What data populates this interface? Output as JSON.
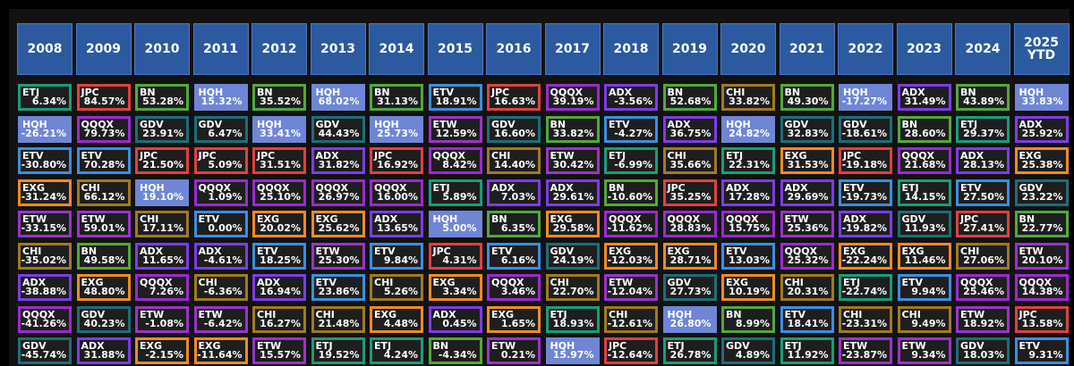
{
  "colors": {
    "ETJ": "#1a9c7a",
    "JPC": "#e04040",
    "BN": "#52a83c",
    "HQH": "#6f86d6",
    "ETV": "#3b8ee0",
    "QQQX": "#9a2ad0",
    "ADX": "#7d3ce8",
    "CHI": "#a07a20",
    "HQHborder": "#6f86d6",
    "GDV": "#1f6d78",
    "EXG": "#f08a24",
    "ETW": "#9a34c8"
  },
  "chart_data": {
    "type": "table",
    "columns": [
      "2008",
      "2009",
      "2010",
      "2011",
      "2012",
      "2013",
      "2014",
      "2015",
      "2016",
      "2017",
      "2018",
      "2019",
      "2020",
      "2021",
      "2022",
      "2023",
      "2024",
      "2025\nYTD"
    ],
    "rows": [
      [
        [
          "ETJ",
          "6.34%"
        ],
        [
          "JPC",
          "84.57%"
        ],
        [
          "BN",
          "53.28%"
        ],
        [
          "HQH",
          "15.32%"
        ],
        [
          "BN",
          "35.52%"
        ],
        [
          "HQH",
          "68.02%"
        ],
        [
          "BN",
          "31.13%"
        ],
        [
          "ETV",
          "18.91%"
        ],
        [
          "JPC",
          "16.63%"
        ],
        [
          "QQQX",
          "39.19%"
        ],
        [
          "ADX",
          "-3.56%"
        ],
        [
          "BN",
          "52.68%"
        ],
        [
          "CHI",
          "33.82%"
        ],
        [
          "BN",
          "49.30%"
        ],
        [
          "HQH",
          "-17.27%"
        ],
        [
          "ADX",
          "31.49%"
        ],
        [
          "BN",
          "43.89%"
        ],
        [
          "HQH",
          "33.83%"
        ]
      ],
      [
        [
          "HQH",
          "-26.21%"
        ],
        [
          "QQQX",
          "79.73%"
        ],
        [
          "GDV",
          "23.91%"
        ],
        [
          "GDV",
          "6.47%"
        ],
        [
          "HQH",
          "33.41%"
        ],
        [
          "GDV",
          "44.43%"
        ],
        [
          "HQH",
          "25.73%"
        ],
        [
          "ETW",
          "12.59%"
        ],
        [
          "GDV",
          "16.60%"
        ],
        [
          "BN",
          "33.82%"
        ],
        [
          "ETV",
          "-4.27%"
        ],
        [
          "ADX",
          "36.75%"
        ],
        [
          "HQH",
          "24.82%"
        ],
        [
          "GDV",
          "32.83%"
        ],
        [
          "GDV",
          "-18.61%"
        ],
        [
          "BN",
          "28.60%"
        ],
        [
          "ETJ",
          "29.37%"
        ],
        [
          "ADX",
          "25.92%"
        ]
      ],
      [
        [
          "ETV",
          "-30.80%"
        ],
        [
          "ETV",
          "70.28%"
        ],
        [
          "JPC",
          "21.50%"
        ],
        [
          "JPC",
          "5.09%"
        ],
        [
          "JPC",
          "31.51%"
        ],
        [
          "ADX",
          "31.82%"
        ],
        [
          "JPC",
          "16.92%"
        ],
        [
          "QQQX",
          "8.42%"
        ],
        [
          "CHI",
          "14.40%"
        ],
        [
          "ETW",
          "30.42%"
        ],
        [
          "ETJ",
          "-6.99%"
        ],
        [
          "CHI",
          "35.66%"
        ],
        [
          "ETJ",
          "22.31%"
        ],
        [
          "EXG",
          "31.53%"
        ],
        [
          "JPC",
          "-19.18%"
        ],
        [
          "QQQX",
          "21.68%"
        ],
        [
          "ADX",
          "28.13%"
        ],
        [
          "EXG",
          "25.38%"
        ]
      ],
      [
        [
          "EXG",
          "-31.24%"
        ],
        [
          "CHI",
          "66.12%"
        ],
        [
          "HQH",
          "19.10%"
        ],
        [
          "QQQX",
          "1.09%"
        ],
        [
          "QQQX",
          "25.10%"
        ],
        [
          "QQQX",
          "26.97%"
        ],
        [
          "QQQX",
          "16.00%"
        ],
        [
          "ETJ",
          "5.89%"
        ],
        [
          "ADX",
          "7.03%"
        ],
        [
          "ADX",
          "29.61%"
        ],
        [
          "BN",
          "-10.60%"
        ],
        [
          "JPC",
          "35.25%"
        ],
        [
          "ADX",
          "17.28%"
        ],
        [
          "ADX",
          "29.69%"
        ],
        [
          "ETV",
          "-19.73%"
        ],
        [
          "ETJ",
          "14.15%"
        ],
        [
          "ETV",
          "27.50%"
        ],
        [
          "GDV",
          "23.22%"
        ]
      ],
      [
        [
          "ETW",
          "-33.15%"
        ],
        [
          "ETW",
          "59.01%"
        ],
        [
          "CHI",
          "17.11%"
        ],
        [
          "ETV",
          "0.00%"
        ],
        [
          "EXG",
          "20.02%"
        ],
        [
          "EXG",
          "25.62%"
        ],
        [
          "ADX",
          "13.65%"
        ],
        [
          "HQH",
          "5.00%"
        ],
        [
          "BN",
          "6.35%"
        ],
        [
          "EXG",
          "29.58%"
        ],
        [
          "QQQX",
          "-11.62%"
        ],
        [
          "QQQX",
          "28.83%"
        ],
        [
          "QQQX",
          "15.75%"
        ],
        [
          "ETW",
          "25.36%"
        ],
        [
          "ADX",
          "-19.82%"
        ],
        [
          "GDV",
          "11.93%"
        ],
        [
          "JPC",
          "27.41%"
        ],
        [
          "BN",
          "22.77%"
        ]
      ],
      [
        [
          "CHI",
          "-35.02%"
        ],
        [
          "BN",
          "49.58%"
        ],
        [
          "ADX",
          "11.65%"
        ],
        [
          "ADX",
          "-4.61%"
        ],
        [
          "ETV",
          "18.25%"
        ],
        [
          "ETW",
          "25.30%"
        ],
        [
          "ETV",
          "9.84%"
        ],
        [
          "JPC",
          "4.31%"
        ],
        [
          "ETV",
          "6.16%"
        ],
        [
          "GDV",
          "24.19%"
        ],
        [
          "EXG",
          "-12.03%"
        ],
        [
          "EXG",
          "28.71%"
        ],
        [
          "ETV",
          "13.03%"
        ],
        [
          "QQQX",
          "25.32%"
        ],
        [
          "EXG",
          "-22.24%"
        ],
        [
          "EXG",
          "11.46%"
        ],
        [
          "CHI",
          "27.06%"
        ],
        [
          "ETW",
          "20.10%"
        ]
      ],
      [
        [
          "ADX",
          "-38.88%"
        ],
        [
          "EXG",
          "48.80%"
        ],
        [
          "QQQX",
          "7.26%"
        ],
        [
          "CHI",
          "-6.36%"
        ],
        [
          "ADX",
          "16.94%"
        ],
        [
          "ETV",
          "23.86%"
        ],
        [
          "CHI",
          "5.26%"
        ],
        [
          "EXG",
          "3.34%"
        ],
        [
          "QQQX",
          "3.46%"
        ],
        [
          "CHI",
          "22.70%"
        ],
        [
          "ETW",
          "-12.04%"
        ],
        [
          "GDV",
          "27.73%"
        ],
        [
          "EXG",
          "10.19%"
        ],
        [
          "CHI",
          "20.31%"
        ],
        [
          "ETJ",
          "-22.74%"
        ],
        [
          "ETV",
          "9.94%"
        ],
        [
          "QQQX",
          "25.46%"
        ],
        [
          "QQQX",
          "14.38%"
        ]
      ],
      [
        [
          "QQQX",
          "-41.26%"
        ],
        [
          "GDV",
          "40.23%"
        ],
        [
          "ETW",
          "-1.08%"
        ],
        [
          "ETW",
          "-6.42%"
        ],
        [
          "CHI",
          "16.27%"
        ],
        [
          "CHI",
          "21.48%"
        ],
        [
          "EXG",
          "4.48%"
        ],
        [
          "ADX",
          "0.45%"
        ],
        [
          "EXG",
          "1.65%"
        ],
        [
          "ETJ",
          "18.93%"
        ],
        [
          "CHI",
          "-12.61%"
        ],
        [
          "HQH",
          "26.80%"
        ],
        [
          "BN",
          "8.99%"
        ],
        [
          "ETV",
          "18.41%"
        ],
        [
          "CHI",
          "-23.31%"
        ],
        [
          "CHI",
          "9.49%"
        ],
        [
          "ETW",
          "18.92%"
        ],
        [
          "JPC",
          "13.58%"
        ]
      ],
      [
        [
          "GDV",
          "-45.74%"
        ],
        [
          "ADX",
          "31.88%"
        ],
        [
          "EXG",
          "-2.15%"
        ],
        [
          "EXG",
          "-11.64%"
        ],
        [
          "ETW",
          "15.57%"
        ],
        [
          "ETJ",
          "19.52%"
        ],
        [
          "ETJ",
          "4.24%"
        ],
        [
          "BN",
          "-4.34%"
        ],
        [
          "ETW",
          "0.21%"
        ],
        [
          "HQH",
          "15.97%"
        ],
        [
          "JPC",
          "-12.64%"
        ],
        [
          "ETJ",
          "26.78%"
        ],
        [
          "GDV",
          "4.89%"
        ],
        [
          "ETJ",
          "11.92%"
        ],
        [
          "ETW",
          "-23.87%"
        ],
        [
          "ETW",
          "9.34%"
        ],
        [
          "GDV",
          "18.03%"
        ],
        [
          "ETV",
          "9.31%"
        ]
      ]
    ]
  }
}
